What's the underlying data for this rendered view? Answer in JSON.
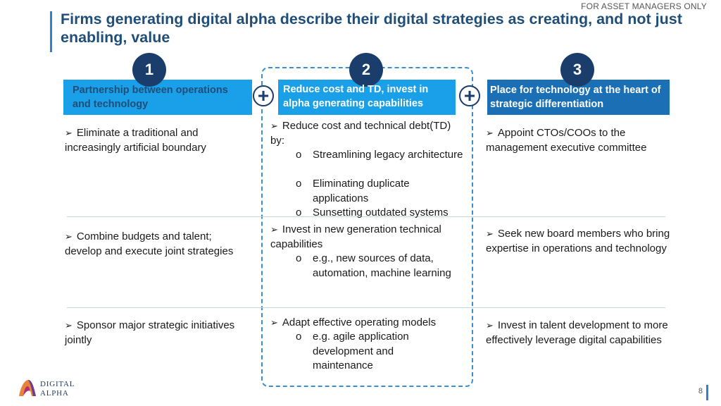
{
  "top_note": "FOR ASSET MANAGERS ONLY",
  "title": "Firms generating digital alpha describe their digital strategies as creating, and not just enabling, value",
  "columns": [
    {
      "number": "1",
      "header": "Partnership between operations and technology",
      "rows": [
        {
          "bullets": [
            {
              "text": "Eliminate a traditional and increasingly artificial boundary",
              "subs": []
            }
          ]
        },
        {
          "bullets": [
            {
              "text": "Combine budgets and talent; develop and execute joint strategies",
              "subs": []
            }
          ]
        },
        {
          "bullets": [
            {
              "text": "Sponsor major strategic initiatives jointly",
              "subs": []
            }
          ]
        }
      ]
    },
    {
      "number": "2",
      "header": "Reduce cost and TD, invest in alpha generating capabilities",
      "rows": [
        {
          "bullets": [
            {
              "text": "Reduce cost and technical debt(TD) by:",
              "subs": [
                "Streamlining legacy architecture",
                "Eliminating duplicate applications",
                "Sunsetting outdated systems"
              ]
            }
          ]
        },
        {
          "bullets": [
            {
              "text": "Invest in new generation technical capabilities",
              "subs": [
                "e.g.,  new sources of data, automation, machine learning"
              ]
            }
          ]
        },
        {
          "bullets": [
            {
              "text": "Adapt effective operating models",
              "subs": [
                "e.g. agile application development and maintenance"
              ]
            }
          ]
        }
      ]
    },
    {
      "number": "3",
      "header": "Place for technology  at the heart of strategic differentiation",
      "rows": [
        {
          "bullets": [
            {
              "text": "Appoint CTOs/COOs to the management executive committee",
              "subs": []
            }
          ]
        },
        {
          "bullets": [
            {
              "text": "Seek new board members who bring expertise in operations and technology",
              "subs": []
            }
          ]
        },
        {
          "bullets": [
            {
              "text": "Invest in talent development to more effectively leverage digital capabilities",
              "subs": []
            }
          ]
        }
      ]
    }
  ],
  "plus_symbol": "+",
  "bullet_glyph": "➢",
  "sub_bullet_glyph": "o",
  "logo": {
    "line1": "DIGITAL",
    "line2": "ALPHA"
  },
  "page_number": "8",
  "colors": {
    "title": "#1f4e79",
    "accent": "#1aa0e8",
    "dark_accent": "#1b6fb5",
    "circle": "#1a3d6b",
    "dash": "#3a8fd1"
  }
}
